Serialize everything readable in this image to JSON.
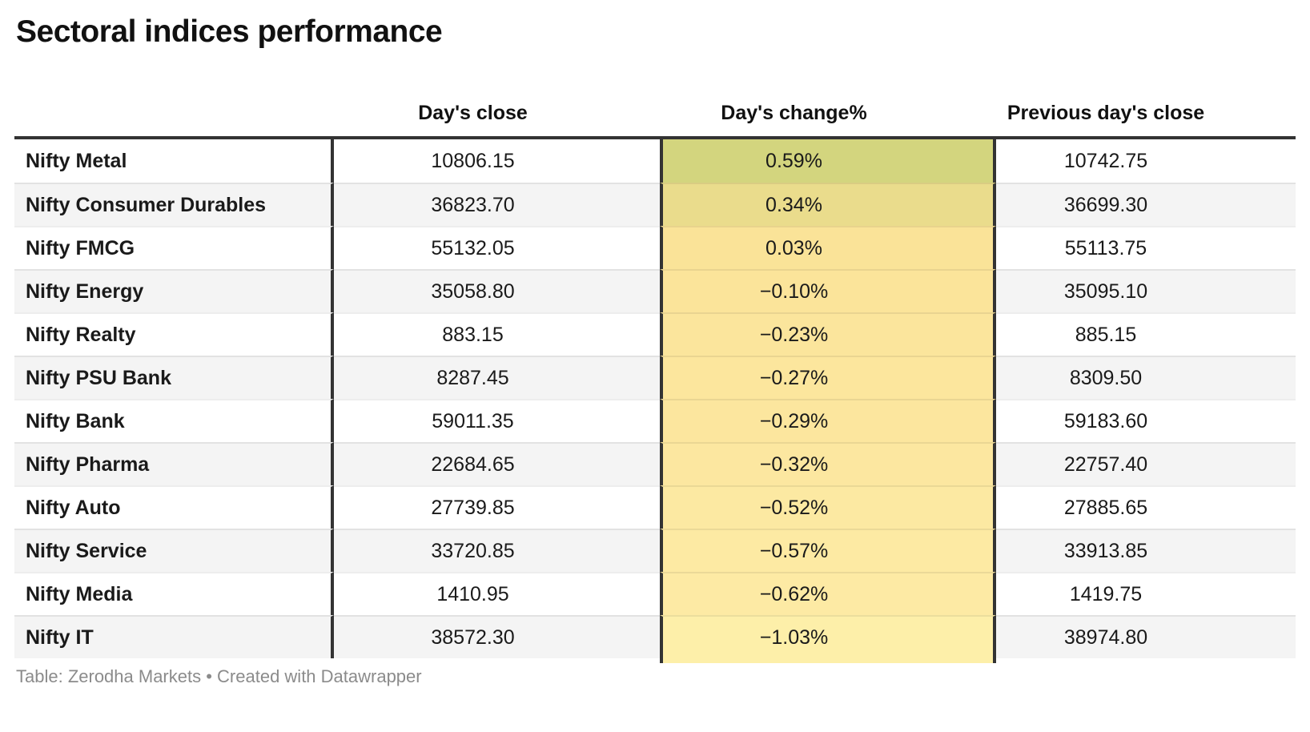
{
  "title": "Sectoral indices performance",
  "footer": "Table: Zerodha Markets • Created with Datawrapper",
  "colors": {
    "text": "#1a1a1a",
    "rule_black": "#333333",
    "stripe": "#f4f4f4",
    "footer_gray": "#8b8b8b"
  },
  "chart_data": {
    "type": "table",
    "title": "Sectoral indices performance",
    "columns": [
      "",
      "Day's close",
      "Day's change%",
      "Previous day's close"
    ],
    "heatmap_column": "Day's change%",
    "rows": [
      {
        "name": "Nifty Metal",
        "close": "10806.15",
        "change": "0.59%",
        "prev": "10742.75",
        "color": "#d3d57e"
      },
      {
        "name": "Nifty Consumer Durables",
        "close": "36823.70",
        "change": "0.34%",
        "prev": "36699.30",
        "color": "#eadc8c"
      },
      {
        "name": "Nifty FMCG",
        "close": "55132.05",
        "change": "0.03%",
        "prev": "55113.75",
        "color": "#fae398"
      },
      {
        "name": "Nifty Energy",
        "close": "35058.80",
        "change": "−0.10%",
        "prev": "35095.10",
        "color": "#fbe49a"
      },
      {
        "name": "Nifty Realty",
        "close": "883.15",
        "change": "−0.23%",
        "prev": "885.15",
        "color": "#fbe59c"
      },
      {
        "name": "Nifty PSU Bank",
        "close": "8287.45",
        "change": "−0.27%",
        "prev": "8309.50",
        "color": "#fce69d"
      },
      {
        "name": "Nifty Bank",
        "close": "59011.35",
        "change": "−0.29%",
        "prev": "59183.60",
        "color": "#fce69e"
      },
      {
        "name": "Nifty Pharma",
        "close": "22684.65",
        "change": "−0.32%",
        "prev": "22757.40",
        "color": "#fce7a0"
      },
      {
        "name": "Nifty Auto",
        "close": "27739.85",
        "change": "−0.52%",
        "prev": "27885.65",
        "color": "#fce9a2"
      },
      {
        "name": "Nifty Service",
        "close": "33720.85",
        "change": "−0.57%",
        "prev": "33913.85",
        "color": "#fdeaa3"
      },
      {
        "name": "Nifty Media",
        "close": "1410.95",
        "change": "−0.62%",
        "prev": "1419.75",
        "color": "#fdeaa4"
      },
      {
        "name": "Nifty IT",
        "close": "38572.30",
        "change": "−1.03%",
        "prev": "38974.80",
        "color": "#fdefa9"
      }
    ]
  }
}
